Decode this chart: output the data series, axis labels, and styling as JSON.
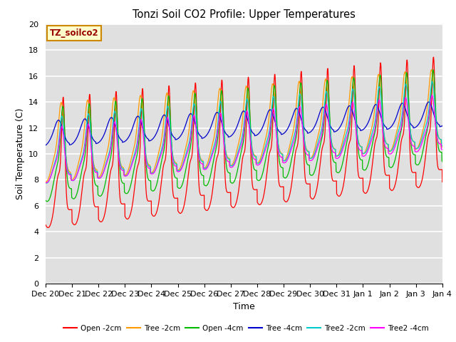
{
  "title": "Tonzi Soil CO2 Profile: Upper Temperatures",
  "xlabel": "Time",
  "ylabel": "Soil Temperature (C)",
  "annotation": "TZ_soilco2",
  "ylim": [
    0,
    20
  ],
  "legend": [
    "Open -2cm",
    "Tree -2cm",
    "Open -4cm",
    "Tree -4cm",
    "Tree2 -2cm",
    "Tree2 -4cm"
  ],
  "colors": [
    "#ff0000",
    "#ff9900",
    "#00bb00",
    "#0000cc",
    "#00cccc",
    "#ff00ff"
  ],
  "xtick_labels": [
    "Dec 20",
    "Dec 21",
    "Dec 22",
    "Dec 23",
    "Dec 24",
    "Dec 25",
    "Dec 26",
    "Dec 27",
    "Dec 28",
    "Dec 29",
    "Dec 30",
    "Dec 31",
    "Jan 1",
    "Jan 2",
    "Jan 3",
    "Jan 4"
  ],
  "background_color": "#e0e0e0",
  "grid_color": "#ffffff",
  "n_days": 15,
  "pts_per_day": 144
}
